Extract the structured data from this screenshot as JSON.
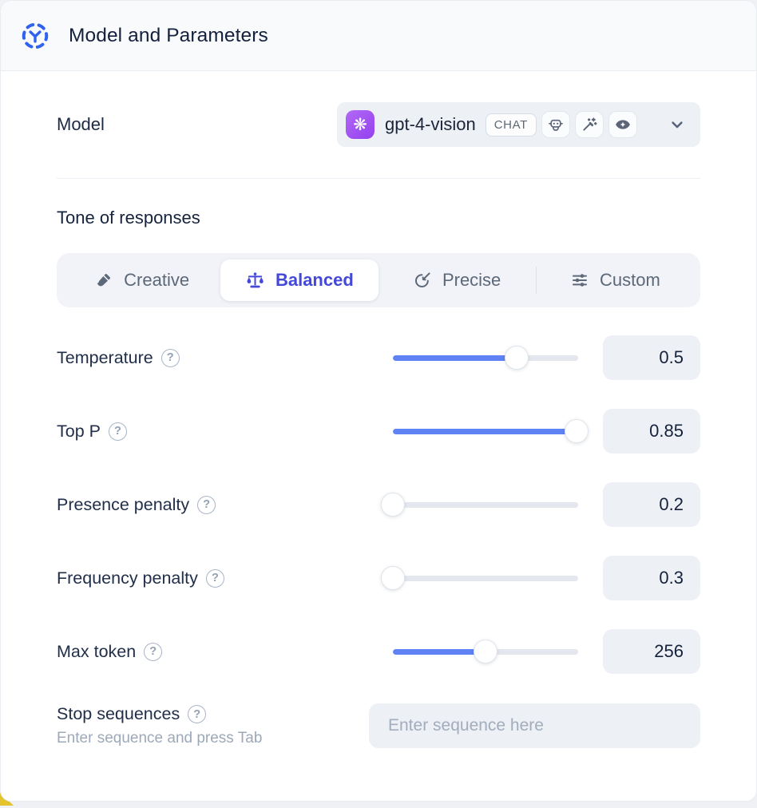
{
  "header": {
    "title": "Model and Parameters"
  },
  "model": {
    "label": "Model",
    "selected_model": "gpt-4-vision",
    "type_badge": "CHAT",
    "capability_icons": [
      "robot-icon",
      "magic-wand-icon",
      "vision-icon"
    ],
    "logo_icon": "openai-logo"
  },
  "tone": {
    "heading": "Tone of responses",
    "options": [
      {
        "label": "Creative",
        "icon": "paintbrush-icon",
        "selected": false
      },
      {
        "label": "Balanced",
        "icon": "balance-scale-icon",
        "selected": true
      },
      {
        "label": "Precise",
        "icon": "target-icon",
        "selected": false
      },
      {
        "label": "Custom",
        "icon": "sliders-icon",
        "selected": false
      }
    ]
  },
  "parameters": [
    {
      "id": "temperature",
      "label": "Temperature",
      "value": "0.5",
      "slider_fill": 0.67
    },
    {
      "id": "top-p",
      "label": "Top P",
      "value": "0.85",
      "slider_fill": 0.99
    },
    {
      "id": "presence-penalty",
      "label": "Presence penalty",
      "value": "0.2",
      "slider_fill": 0
    },
    {
      "id": "frequency-penalty",
      "label": "Frequency penalty",
      "value": "0.3",
      "slider_fill": 0
    },
    {
      "id": "max-token",
      "label": "Max token",
      "value": "256",
      "slider_fill": 0.5
    }
  ],
  "stop_sequences": {
    "label": "Stop sequences",
    "hint": "Enter sequence and press Tab",
    "placeholder": "Enter sequence here",
    "value": ""
  },
  "colors": {
    "accent_blue": "#5f82f4",
    "selected_indigo": "#4448d8",
    "header_icon_blue": "#2f62ee",
    "openai_purple": "#9a4df2",
    "yellow_accent": "#e3c32e"
  }
}
